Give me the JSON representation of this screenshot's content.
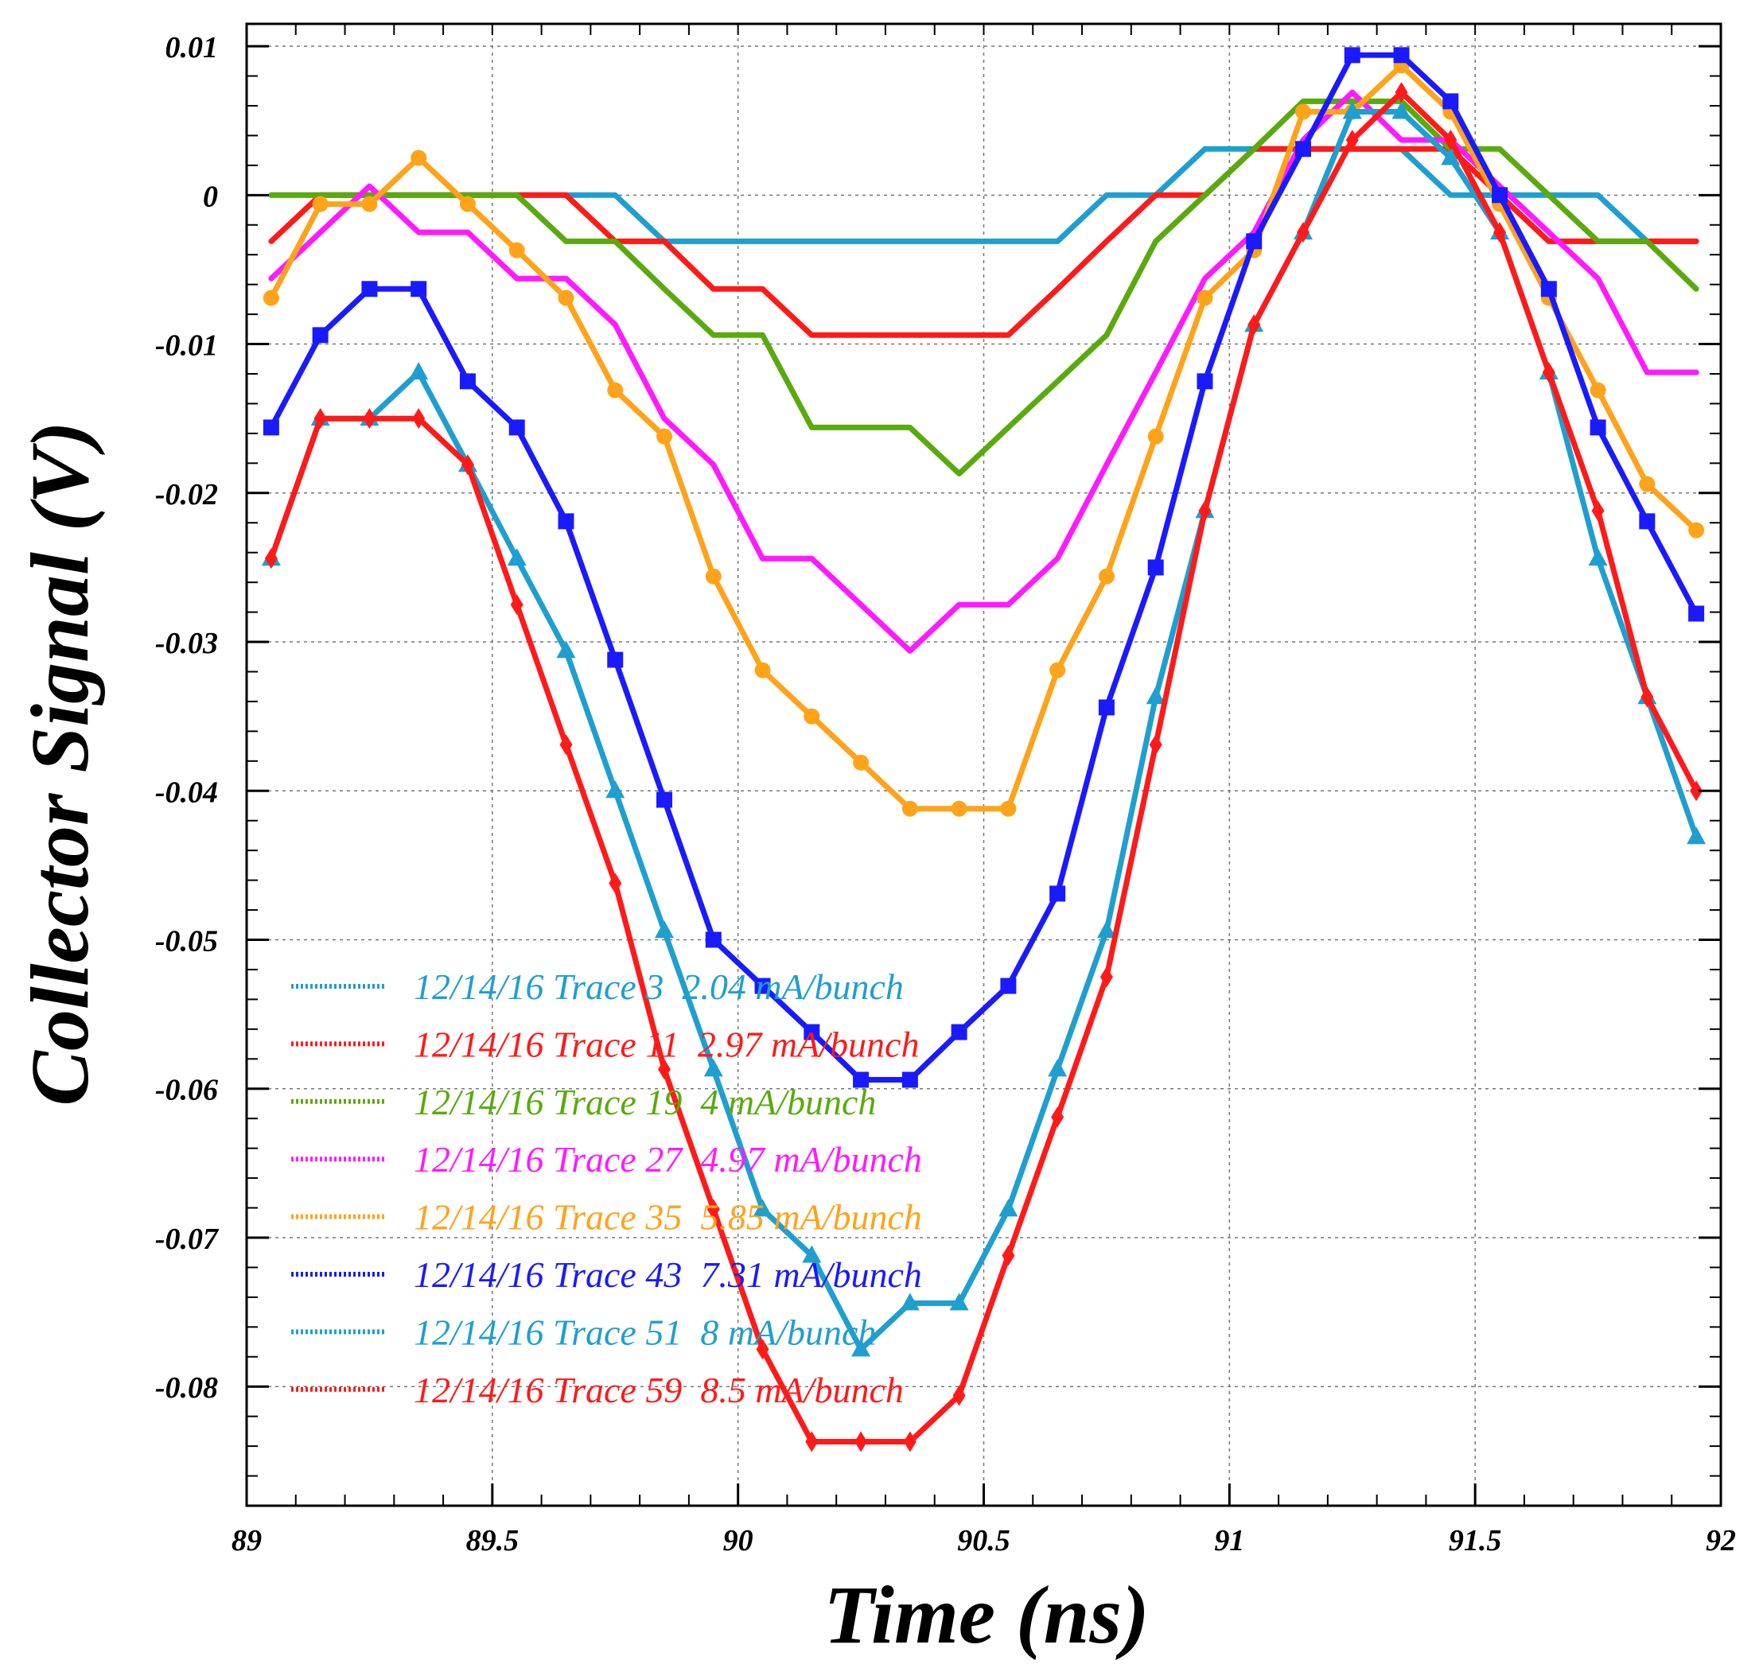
{
  "chart_data": {
    "type": "line",
    "title": "",
    "xlabel": "Time (ns)",
    "ylabel": "Collector Signal (V)",
    "xlim": [
      89,
      92
    ],
    "ylim": [
      -0.088,
      0.0115
    ],
    "grid": true,
    "legend_position": "bottom-left",
    "x_ticks": [
      89,
      89.5,
      90,
      90.5,
      91,
      91.5,
      92
    ],
    "x_tick_labels": [
      "89",
      "89.5",
      "90",
      "90.5",
      "91",
      "91.5",
      "92"
    ],
    "y_ticks": [
      0.01,
      0,
      -0.01,
      -0.02,
      -0.03,
      -0.04,
      -0.05,
      -0.06,
      -0.07,
      -0.08
    ],
    "y_tick_labels": [
      "0.01",
      "0",
      "-0.01",
      "-0.02",
      "-0.03",
      "-0.04",
      "-0.05",
      "-0.06",
      "-0.07",
      "-0.08"
    ],
    "x": [
      89.05,
      89.15,
      89.25,
      89.35,
      89.45,
      89.55,
      89.65,
      89.75,
      89.85,
      89.95,
      90.05,
      90.15,
      90.25,
      90.35,
      90.45,
      90.55,
      90.65,
      90.75,
      90.85,
      90.95,
      91.05,
      91.15,
      91.25,
      91.35,
      91.45,
      91.55,
      91.65,
      91.75,
      91.85,
      91.95
    ],
    "series": [
      {
        "name": "12/14/16 Trace 3  2.04 mA/bunch",
        "color": "#1f9fcf",
        "marker": "none",
        "values": [
          0,
          0,
          0,
          0,
          0,
          0,
          0,
          0,
          -0.0031,
          -0.0031,
          -0.0031,
          -0.0031,
          -0.0031,
          -0.0031,
          -0.0031,
          -0.0031,
          -0.0031,
          0,
          0,
          0.0031,
          0.0031,
          0.0031,
          0.0031,
          0.0031,
          0,
          0,
          0,
          0,
          -0.0031,
          -0.0031
        ]
      },
      {
        "name": "12/14/16 Trace 11  2.97 mA/bunch",
        "color": "#ff1a1a",
        "marker": "none",
        "values": [
          -0.0031,
          0,
          0,
          0,
          0,
          0,
          0,
          -0.0031,
          -0.0031,
          -0.0063,
          -0.0063,
          -0.0094,
          -0.0094,
          -0.0094,
          -0.0094,
          -0.0094,
          -0.0063,
          -0.0031,
          0,
          0,
          0.0031,
          0.0031,
          0.0031,
          0.0031,
          0.0031,
          0,
          -0.0031,
          -0.0031,
          -0.0031,
          -0.0031
        ]
      },
      {
        "name": "12/14/16 Trace 19  4 mA/bunch",
        "color": "#5aaa0e",
        "marker": "none",
        "values": [
          0,
          0,
          0,
          0,
          0,
          0,
          -0.0031,
          -0.0031,
          -0.0063,
          -0.0094,
          -0.0094,
          -0.0156,
          -0.0156,
          -0.0156,
          -0.0187,
          -0.0156,
          -0.0125,
          -0.0094,
          -0.0031,
          0,
          0.0031,
          0.0063,
          0.0063,
          0.0063,
          0.0031,
          0.0031,
          0,
          -0.0031,
          -0.0031,
          -0.0063
        ]
      },
      {
        "name": "12/14/16 Trace 27  4.97 mA/bunch",
        "color": "#ff1aff",
        "marker": "none",
        "values": [
          -0.0056,
          -0.0025,
          0.0006,
          -0.0025,
          -0.0025,
          -0.0056,
          -0.0056,
          -0.0087,
          -0.015,
          -0.0181,
          -0.0244,
          -0.0244,
          -0.0275,
          -0.0306,
          -0.0275,
          -0.0275,
          -0.0244,
          -0.0181,
          -0.0119,
          -0.0056,
          -0.0025,
          0.0037,
          0.0069,
          0.0037,
          0.0037,
          0.0006,
          -0.0025,
          -0.0056,
          -0.0119,
          -0.0119
        ]
      },
      {
        "name": "12/14/16 Trace 35  5.85 mA/bunch",
        "color": "#ffa31a",
        "marker": "circle",
        "values": [
          -0.0069,
          -0.0006,
          -0.0006,
          0.0025,
          -0.0006,
          -0.0037,
          -0.0069,
          -0.0131,
          -0.0162,
          -0.0256,
          -0.0319,
          -0.035,
          -0.0381,
          -0.0412,
          -0.0412,
          -0.0412,
          -0.0319,
          -0.0256,
          -0.0162,
          -0.0069,
          -0.0037,
          0.0056,
          0.0056,
          0.0087,
          0.0056,
          -0.0006,
          -0.0069,
          -0.0131,
          -0.0194,
          -0.0225
        ]
      },
      {
        "name": "12/14/16 Trace 43  7.31 mA/bunch",
        "color": "#1a1aff",
        "marker": "square",
        "values": [
          -0.0156,
          -0.0094,
          -0.0063,
          -0.0063,
          -0.0125,
          -0.0156,
          -0.0219,
          -0.0312,
          -0.0406,
          -0.05,
          -0.0531,
          -0.0562,
          -0.0594,
          -0.0594,
          -0.0562,
          -0.0531,
          -0.0469,
          -0.0344,
          -0.025,
          -0.0125,
          -0.0031,
          0.0031,
          0.0094,
          0.0094,
          0.0063,
          0,
          -0.0063,
          -0.0156,
          -0.0219,
          -0.0281
        ]
      },
      {
        "name": "12/14/16 Trace 51  8 mA/bunch",
        "color": "#1f9fcf",
        "marker": "triangle",
        "values": [
          -0.0244,
          -0.015,
          -0.015,
          -0.0119,
          -0.0181,
          -0.0244,
          -0.0306,
          -0.04,
          -0.0494,
          -0.0587,
          -0.0681,
          -0.0712,
          -0.0775,
          -0.0744,
          -0.0744,
          -0.0681,
          -0.0587,
          -0.0494,
          -0.0337,
          -0.0212,
          -0.0087,
          -0.0025,
          0.0056,
          0.0056,
          0.0025,
          -0.0025,
          -0.0119,
          -0.0244,
          -0.0337,
          -0.0431
        ]
      },
      {
        "name": "12/14/16 Trace 59  8.5 mA/bunch",
        "color": "#ff1a1a",
        "marker": "diamond",
        "values": [
          -0.0244,
          -0.015,
          -0.015,
          -0.015,
          -0.0181,
          -0.0275,
          -0.0369,
          -0.0462,
          -0.0587,
          -0.0681,
          -0.0775,
          -0.0837,
          -0.0837,
          -0.0837,
          -0.0806,
          -0.0712,
          -0.0619,
          -0.0525,
          -0.0369,
          -0.0212,
          -0.0087,
          -0.0025,
          0.0037,
          0.0069,
          0.0037,
          -0.0025,
          -0.0119,
          -0.0212,
          -0.0337,
          -0.04
        ]
      }
    ]
  }
}
